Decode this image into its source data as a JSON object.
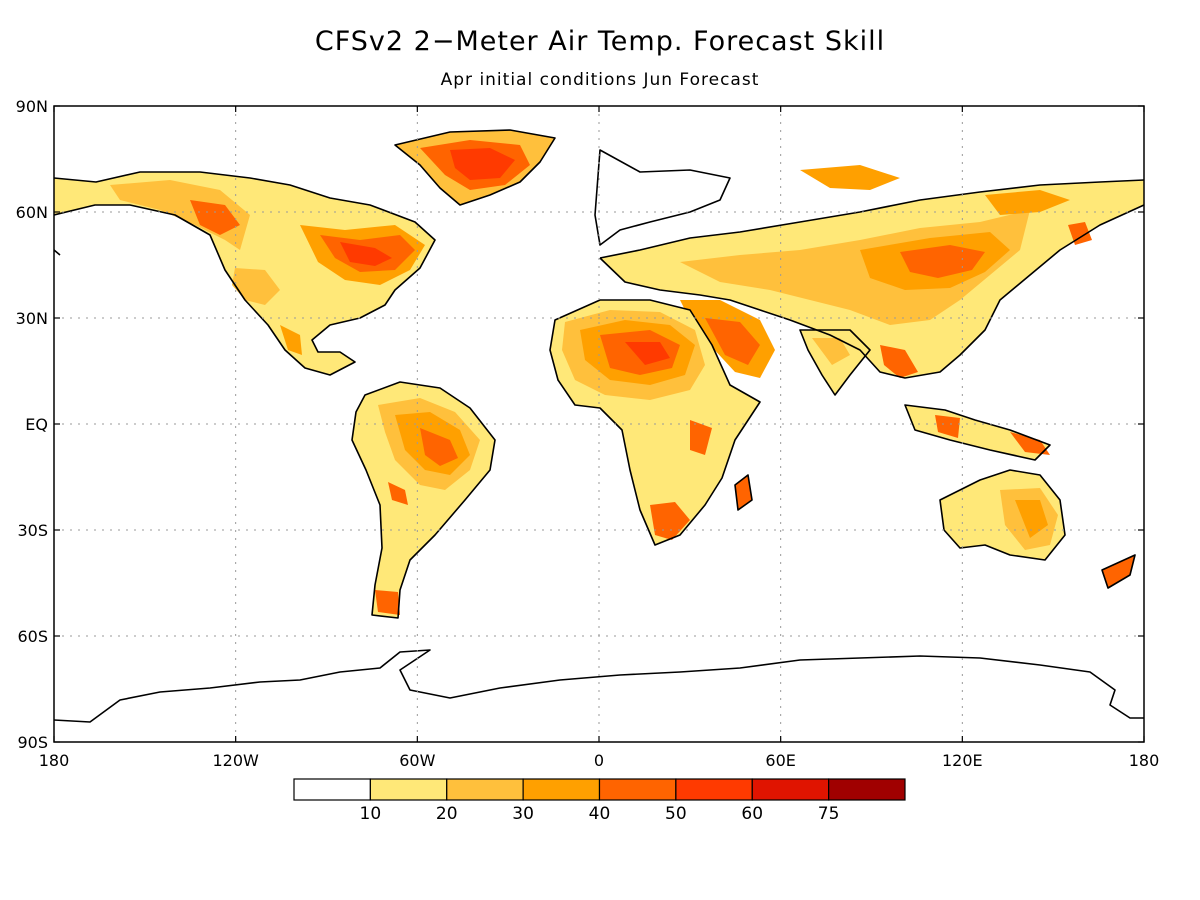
{
  "title": "CFSv2 2−Meter Air Temp. Forecast Skill",
  "subtitle": "Apr initial conditions   Jun Forecast",
  "lat_labels": [
    "90N",
    "60N",
    "30N",
    "EQ",
    "30S",
    "60S",
    "90S"
  ],
  "lon_labels": [
    "180",
    "120W",
    "60W",
    "0",
    "60E",
    "120E",
    "180"
  ],
  "colorbar": {
    "labels": [
      "10",
      "20",
      "30",
      "40",
      "50",
      "60",
      "75"
    ],
    "colors": [
      "#ffffff",
      "#ffe878",
      "#ffc03c",
      "#ffa000",
      "#ff6400",
      "#ff3a00",
      "#e01400",
      "#a00000"
    ]
  }
}
